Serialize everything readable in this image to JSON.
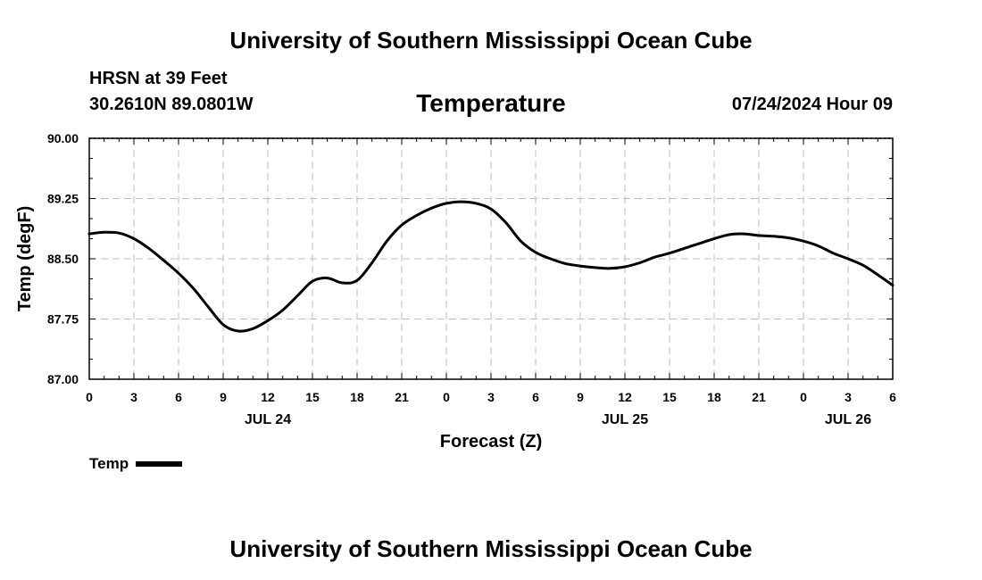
{
  "header": {
    "title": "University of Southern Mississippi Ocean Cube",
    "station": "HRSN at 39 Feet",
    "coordinates": "30.2610N  89.0801W",
    "timestamp": "07/24/2024 Hour 09"
  },
  "footer": {
    "title": "University of Southern Mississippi Ocean Cube"
  },
  "chart_data": {
    "type": "line",
    "title": "Temperature",
    "xlabel": "Forecast (Z)",
    "ylabel": "Temp (degF)",
    "xlim": [
      0,
      54
    ],
    "ylim": [
      87.0,
      90.0
    ],
    "y_ticks": [
      "87.00",
      "87.75",
      "88.50",
      "89.25",
      "90.00"
    ],
    "y_tick_values": [
      87.0,
      87.75,
      88.5,
      89.25,
      90.0
    ],
    "x_ticks": [
      "0",
      "3",
      "6",
      "9",
      "12",
      "15",
      "18",
      "21",
      "0",
      "3",
      "6",
      "9",
      "12",
      "15",
      "18",
      "21",
      "0",
      "3",
      "6"
    ],
    "x_tick_hours": [
      0,
      3,
      6,
      9,
      12,
      15,
      18,
      21,
      24,
      27,
      30,
      33,
      36,
      39,
      42,
      45,
      48,
      51,
      54
    ],
    "date_labels": [
      {
        "label": "JUL 24",
        "hour": 12
      },
      {
        "label": "JUL 25",
        "hour": 36
      },
      {
        "label": "JUL 26",
        "hour": 51
      }
    ],
    "grid": true,
    "legend": {
      "position": "bottom-left",
      "entries": [
        "Temp"
      ]
    },
    "series": [
      {
        "name": "Temp",
        "color": "#000000",
        "x": [
          0,
          1,
          2,
          3,
          4,
          5,
          6,
          7,
          8,
          9,
          10,
          11,
          12,
          13,
          14,
          15,
          16,
          17,
          18,
          19,
          20,
          21,
          22,
          23,
          24,
          25,
          26,
          27,
          28,
          29,
          30,
          31,
          32,
          33,
          34,
          35,
          36,
          37,
          38,
          39,
          40,
          41,
          42,
          43,
          44,
          45,
          46,
          47,
          48,
          49,
          50,
          51,
          52,
          53,
          54
        ],
        "values": [
          88.81,
          88.83,
          88.82,
          88.75,
          88.63,
          88.48,
          88.32,
          88.13,
          87.9,
          87.68,
          87.6,
          87.63,
          87.73,
          87.86,
          88.04,
          88.22,
          88.26,
          88.2,
          88.23,
          88.45,
          88.72,
          88.92,
          89.04,
          89.13,
          89.19,
          89.21,
          89.19,
          89.12,
          88.95,
          88.72,
          88.58,
          88.5,
          88.44,
          88.41,
          88.39,
          88.38,
          88.4,
          88.45,
          88.52,
          88.57,
          88.63,
          88.69,
          88.75,
          88.8,
          88.81,
          88.79,
          88.78,
          88.76,
          88.72,
          88.66,
          88.57,
          88.5,
          88.42,
          88.3,
          88.17
        ]
      }
    ]
  }
}
